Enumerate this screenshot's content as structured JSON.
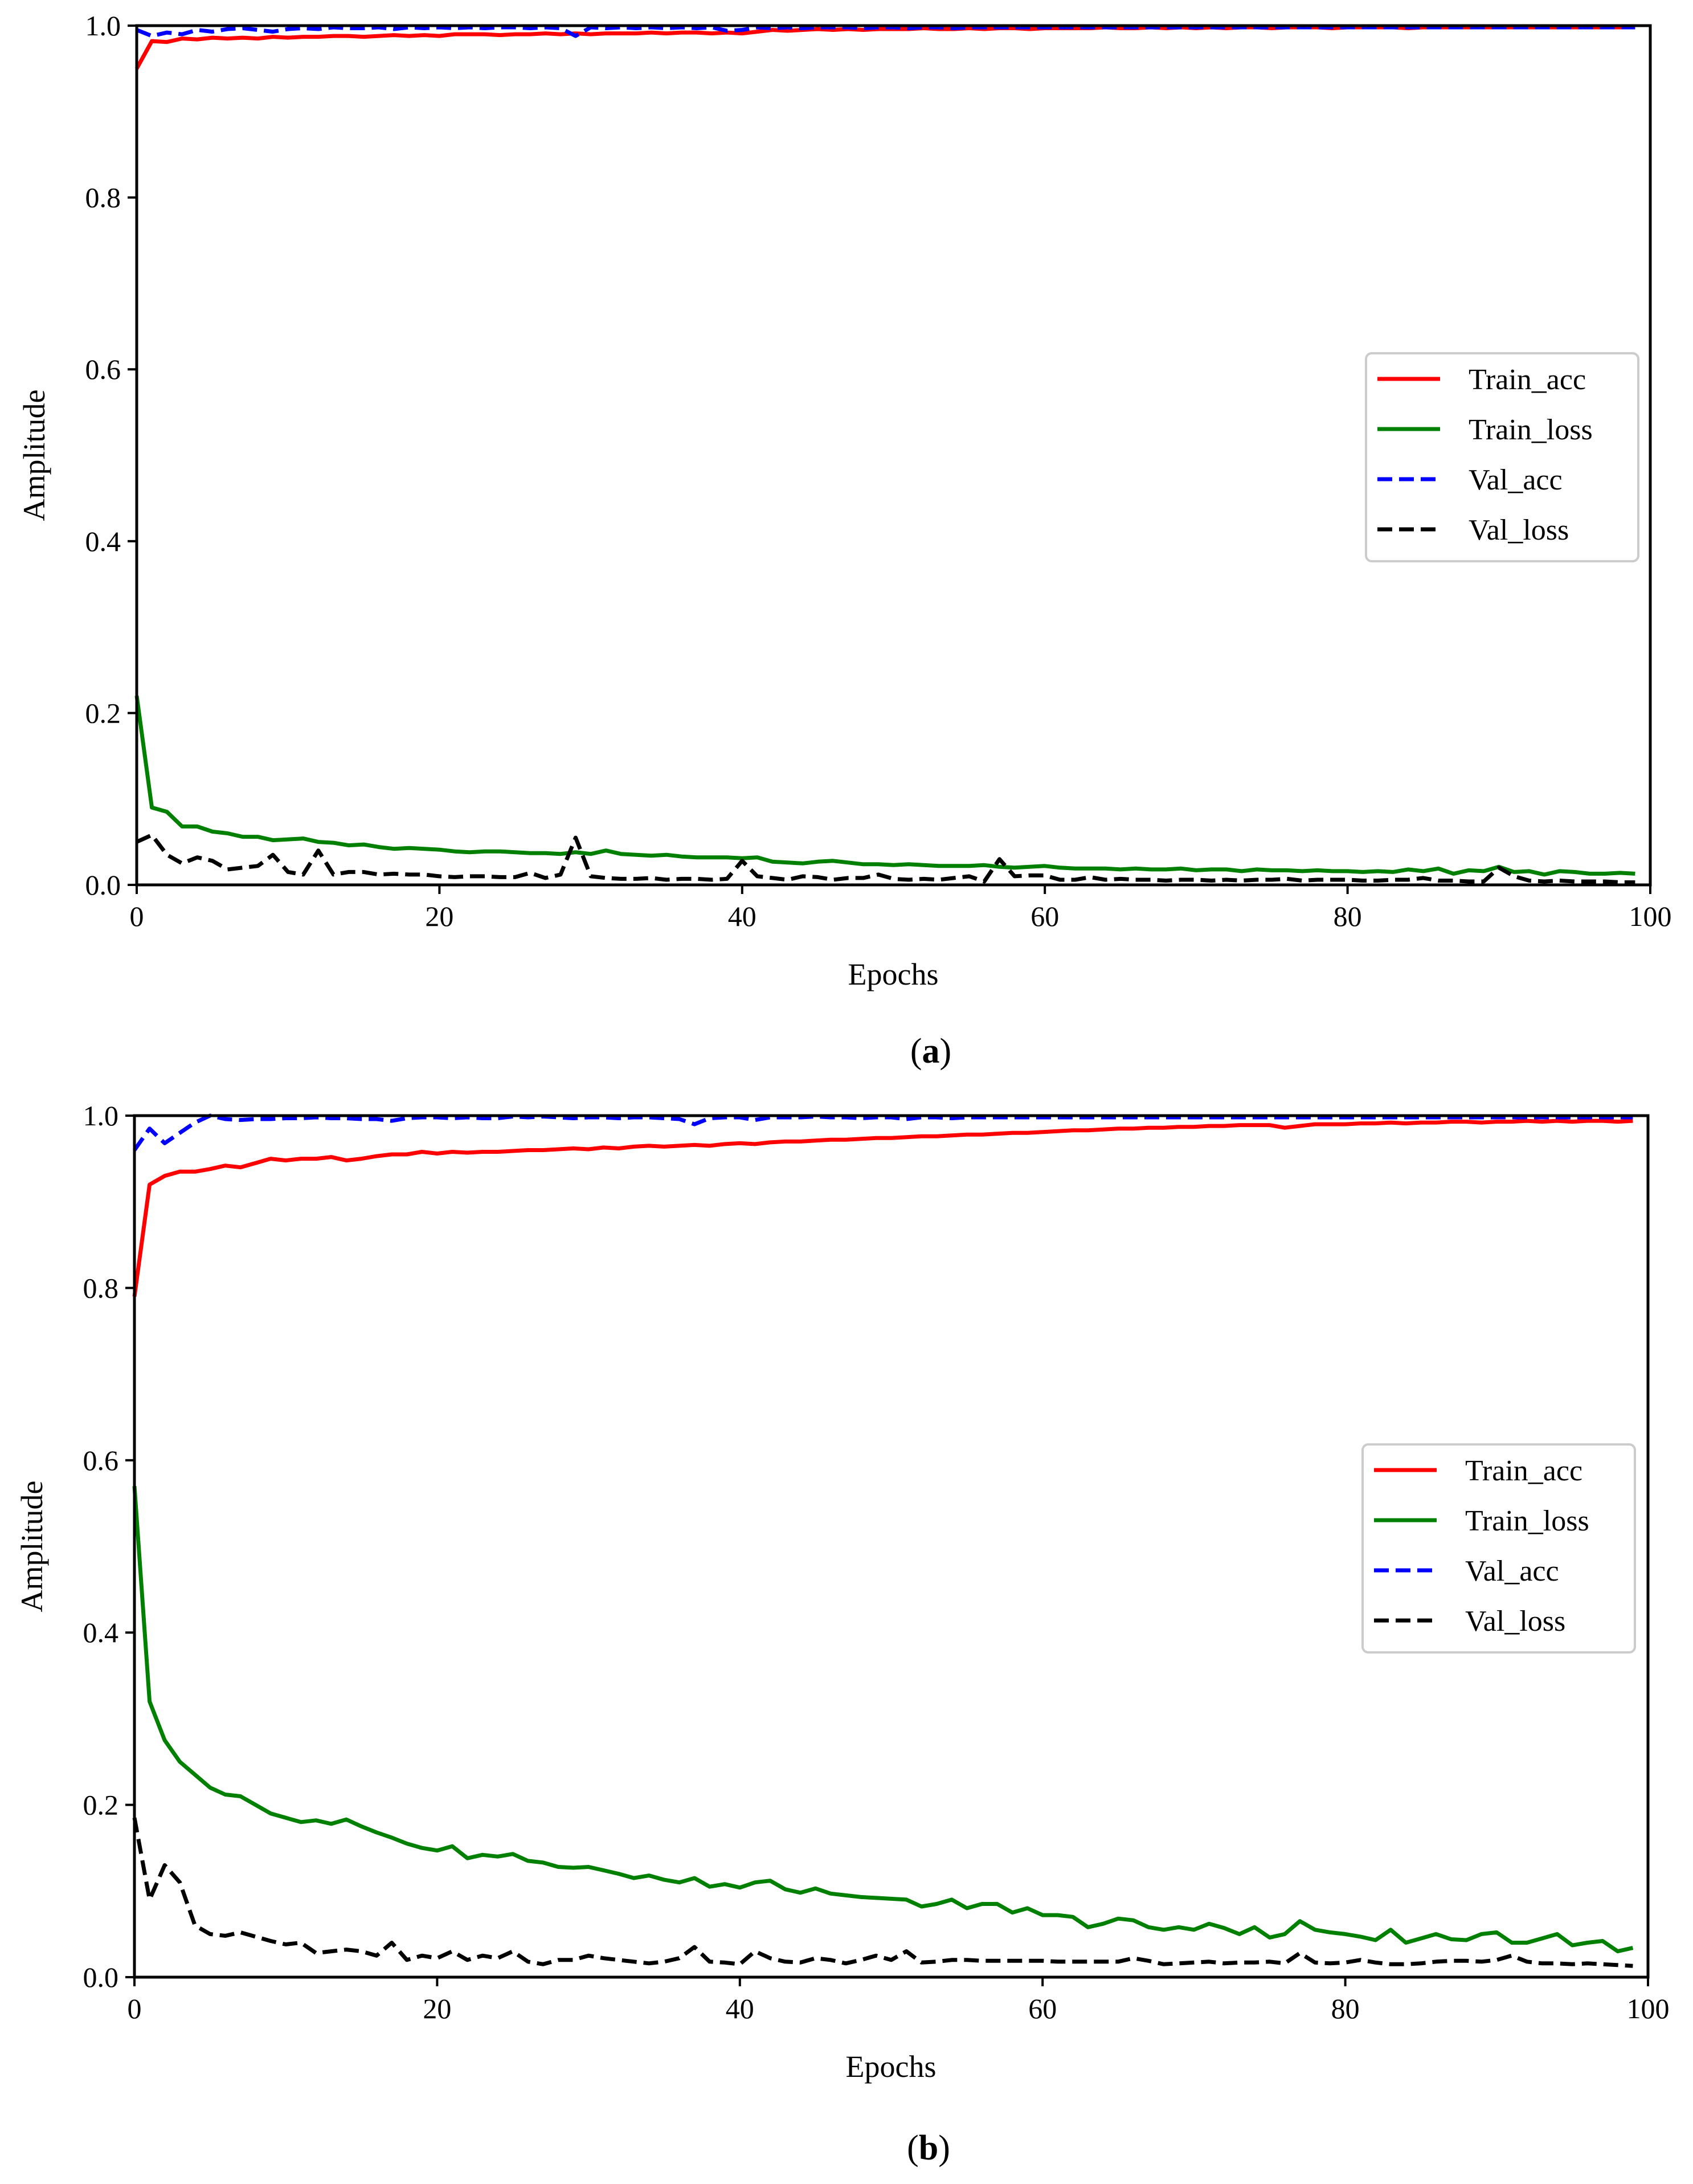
{
  "chart_data": [
    {
      "panel_label": "a",
      "type": "line",
      "title": "",
      "xlabel": "Epochs",
      "ylabel": "Amplitude",
      "xlim": [
        0,
        100
      ],
      "ylim": [
        0,
        1.0
      ],
      "xticks": [
        "0",
        "20",
        "40",
        "60",
        "80",
        "100"
      ],
      "yticks": [
        "0.0",
        "0.2",
        "0.4",
        "0.6",
        "0.8",
        "1.0"
      ],
      "grid": false,
      "legend_position": "center-right",
      "x": [
        0,
        1,
        2,
        3,
        4,
        5,
        6,
        7,
        8,
        9,
        10,
        11,
        12,
        13,
        14,
        15,
        16,
        17,
        18,
        19,
        20,
        21,
        22,
        23,
        24,
        25,
        26,
        27,
        28,
        29,
        30,
        31,
        32,
        33,
        34,
        35,
        36,
        37,
        38,
        39,
        40,
        41,
        42,
        43,
        44,
        45,
        46,
        47,
        48,
        49,
        50,
        51,
        52,
        53,
        54,
        55,
        56,
        57,
        58,
        59,
        60,
        61,
        62,
        63,
        64,
        65,
        66,
        67,
        68,
        69,
        70,
        71,
        72,
        73,
        74,
        75,
        76,
        77,
        78,
        79,
        80,
        81,
        82,
        83,
        84,
        85,
        86,
        87,
        88,
        89,
        90,
        91,
        92,
        93,
        94,
        95,
        96,
        97,
        98,
        99
      ],
      "series": [
        {
          "name": "Train_acc",
          "color": "#ff0000",
          "dash": "solid",
          "values": [
            0.95,
            0.982,
            0.981,
            0.985,
            0.984,
            0.986,
            0.985,
            0.986,
            0.985,
            0.987,
            0.986,
            0.987,
            0.987,
            0.988,
            0.988,
            0.987,
            0.988,
            0.989,
            0.988,
            0.989,
            0.988,
            0.99,
            0.99,
            0.99,
            0.989,
            0.99,
            0.99,
            0.991,
            0.99,
            0.991,
            0.99,
            0.991,
            0.991,
            0.991,
            0.992,
            0.991,
            0.992,
            0.992,
            0.991,
            0.992,
            0.991,
            0.993,
            0.995,
            0.994,
            0.995,
            0.996,
            0.995,
            0.996,
            0.995,
            0.996,
            0.996,
            0.996,
            0.997,
            0.996,
            0.996,
            0.997,
            0.996,
            0.997,
            0.997,
            0.996,
            0.997,
            0.997,
            0.997,
            0.997,
            0.998,
            0.997,
            0.997,
            0.998,
            0.997,
            0.998,
            0.997,
            0.998,
            0.997,
            0.998,
            0.998,
            0.997,
            0.998,
            0.998,
            0.998,
            0.997,
            0.998,
            0.998,
            0.998,
            0.998,
            0.997,
            0.998,
            0.998,
            0.998,
            0.998,
            0.998,
            0.998,
            0.998,
            0.998,
            0.998,
            0.998,
            0.998,
            0.998,
            0.998,
            0.998,
            0.998
          ]
        },
        {
          "name": "Train_loss",
          "color": "#008000",
          "dash": "solid",
          "values": [
            0.22,
            0.09,
            0.085,
            0.068,
            0.068,
            0.062,
            0.06,
            0.056,
            0.056,
            0.052,
            0.053,
            0.054,
            0.05,
            0.049,
            0.046,
            0.047,
            0.044,
            0.042,
            0.043,
            0.042,
            0.041,
            0.039,
            0.038,
            0.039,
            0.039,
            0.038,
            0.037,
            0.037,
            0.036,
            0.038,
            0.036,
            0.04,
            0.036,
            0.035,
            0.034,
            0.035,
            0.033,
            0.032,
            0.032,
            0.032,
            0.031,
            0.032,
            0.027,
            0.026,
            0.025,
            0.027,
            0.028,
            0.026,
            0.024,
            0.024,
            0.023,
            0.024,
            0.023,
            0.022,
            0.022,
            0.022,
            0.023,
            0.021,
            0.02,
            0.021,
            0.022,
            0.02,
            0.019,
            0.019,
            0.019,
            0.018,
            0.019,
            0.018,
            0.018,
            0.019,
            0.017,
            0.018,
            0.018,
            0.016,
            0.018,
            0.017,
            0.017,
            0.016,
            0.017,
            0.016,
            0.016,
            0.015,
            0.016,
            0.015,
            0.018,
            0.016,
            0.019,
            0.013,
            0.017,
            0.016,
            0.021,
            0.015,
            0.016,
            0.012,
            0.016,
            0.015,
            0.013,
            0.013,
            0.014,
            0.013
          ]
        },
        {
          "name": "Val_acc",
          "color": "#0000ff",
          "dash": "dashed",
          "values": [
            0.995,
            0.988,
            0.992,
            0.99,
            0.995,
            0.993,
            0.996,
            0.997,
            0.995,
            0.993,
            0.996,
            0.997,
            0.996,
            0.998,
            0.997,
            0.997,
            0.998,
            0.996,
            0.998,
            0.997,
            0.998,
            0.997,
            0.998,
            0.997,
            0.998,
            0.998,
            0.997,
            0.998,
            0.997,
            0.988,
            0.998,
            0.997,
            0.998,
            0.997,
            0.998,
            0.997,
            0.998,
            0.997,
            0.998,
            0.994,
            0.995,
            0.998,
            0.997,
            0.998,
            0.997,
            0.998,
            0.998,
            0.998,
            0.997,
            0.998,
            0.998,
            0.997,
            0.998,
            0.998,
            0.997,
            0.998,
            0.998,
            0.998,
            0.998,
            0.998,
            0.998,
            0.998,
            0.998,
            0.998,
            0.998,
            0.998,
            0.998,
            0.998,
            0.998,
            0.998,
            0.998,
            0.998,
            0.998,
            0.998,
            0.998,
            0.998,
            0.998,
            0.998,
            0.998,
            0.998,
            0.998,
            0.998,
            0.998,
            0.998,
            0.998,
            0.998,
            0.998,
            0.998,
            0.998,
            0.998,
            0.998,
            0.998,
            0.998,
            0.998,
            0.998,
            0.998,
            0.998,
            0.998,
            0.998,
            0.998
          ]
        },
        {
          "name": "Val_loss",
          "color": "#000000",
          "dash": "dashed",
          "values": [
            0.05,
            0.058,
            0.035,
            0.025,
            0.032,
            0.028,
            0.018,
            0.02,
            0.022,
            0.035,
            0.015,
            0.012,
            0.04,
            0.012,
            0.015,
            0.015,
            0.012,
            0.013,
            0.012,
            0.012,
            0.01,
            0.009,
            0.01,
            0.01,
            0.009,
            0.009,
            0.014,
            0.008,
            0.012,
            0.055,
            0.01,
            0.008,
            0.007,
            0.007,
            0.008,
            0.006,
            0.007,
            0.007,
            0.006,
            0.007,
            0.028,
            0.01,
            0.008,
            0.006,
            0.01,
            0.009,
            0.006,
            0.008,
            0.008,
            0.012,
            0.007,
            0.006,
            0.007,
            0.006,
            0.008,
            0.01,
            0.004,
            0.03,
            0.01,
            0.011,
            0.011,
            0.006,
            0.006,
            0.009,
            0.006,
            0.007,
            0.006,
            0.006,
            0.005,
            0.006,
            0.006,
            0.005,
            0.006,
            0.005,
            0.006,
            0.006,
            0.007,
            0.005,
            0.006,
            0.006,
            0.006,
            0.005,
            0.005,
            0.006,
            0.006,
            0.008,
            0.005,
            0.005,
            0.004,
            0.004,
            0.02,
            0.01,
            0.005,
            0.004,
            0.005,
            0.004,
            0.004,
            0.004,
            0.003,
            0.003
          ]
        }
      ]
    },
    {
      "panel_label": "b",
      "type": "line",
      "title": "",
      "xlabel": "Epochs",
      "ylabel": "Amplitude",
      "xlim": [
        0,
        100
      ],
      "ylim": [
        0,
        1.0
      ],
      "xticks": [
        "0",
        "20",
        "40",
        "60",
        "80",
        "100"
      ],
      "yticks": [
        "0.0",
        "0.2",
        "0.4",
        "0.6",
        "0.8",
        "1.0"
      ],
      "grid": false,
      "legend_position": "center-right",
      "x": [
        0,
        1,
        2,
        3,
        4,
        5,
        6,
        7,
        8,
        9,
        10,
        11,
        12,
        13,
        14,
        15,
        16,
        17,
        18,
        19,
        20,
        21,
        22,
        23,
        24,
        25,
        26,
        27,
        28,
        29,
        30,
        31,
        32,
        33,
        34,
        35,
        36,
        37,
        38,
        39,
        40,
        41,
        42,
        43,
        44,
        45,
        46,
        47,
        48,
        49,
        50,
        51,
        52,
        53,
        54,
        55,
        56,
        57,
        58,
        59,
        60,
        61,
        62,
        63,
        64,
        65,
        66,
        67,
        68,
        69,
        70,
        71,
        72,
        73,
        74,
        75,
        76,
        77,
        78,
        79,
        80,
        81,
        82,
        83,
        84,
        85,
        86,
        87,
        88,
        89,
        90,
        91,
        92,
        93,
        94,
        95,
        96,
        97,
        98,
        99
      ],
      "series": [
        {
          "name": "Train_acc",
          "color": "#ff0000",
          "dash": "solid",
          "values": [
            0.79,
            0.92,
            0.93,
            0.935,
            0.935,
            0.938,
            0.942,
            0.94,
            0.945,
            0.95,
            0.948,
            0.95,
            0.95,
            0.952,
            0.948,
            0.95,
            0.953,
            0.955,
            0.955,
            0.958,
            0.956,
            0.958,
            0.957,
            0.958,
            0.958,
            0.959,
            0.96,
            0.96,
            0.961,
            0.962,
            0.961,
            0.963,
            0.962,
            0.964,
            0.965,
            0.964,
            0.965,
            0.966,
            0.965,
            0.967,
            0.968,
            0.967,
            0.969,
            0.97,
            0.97,
            0.971,
            0.972,
            0.972,
            0.973,
            0.974,
            0.974,
            0.975,
            0.976,
            0.976,
            0.977,
            0.978,
            0.978,
            0.979,
            0.98,
            0.98,
            0.981,
            0.982,
            0.983,
            0.983,
            0.984,
            0.985,
            0.985,
            0.986,
            0.986,
            0.987,
            0.987,
            0.988,
            0.988,
            0.989,
            0.989,
            0.989,
            0.986,
            0.988,
            0.99,
            0.99,
            0.99,
            0.991,
            0.991,
            0.992,
            0.991,
            0.992,
            0.992,
            0.993,
            0.993,
            0.992,
            0.993,
            0.993,
            0.994,
            0.993,
            0.994,
            0.993,
            0.994,
            0.994,
            0.993,
            0.994
          ]
        },
        {
          "name": "Train_loss",
          "color": "#008000",
          "dash": "solid",
          "values": [
            0.57,
            0.32,
            0.275,
            0.25,
            0.235,
            0.22,
            0.212,
            0.21,
            0.2,
            0.19,
            0.185,
            0.18,
            0.182,
            0.178,
            0.183,
            0.175,
            0.168,
            0.162,
            0.155,
            0.15,
            0.147,
            0.152,
            0.138,
            0.142,
            0.14,
            0.143,
            0.135,
            0.133,
            0.128,
            0.127,
            0.128,
            0.124,
            0.12,
            0.115,
            0.118,
            0.113,
            0.11,
            0.115,
            0.105,
            0.108,
            0.104,
            0.11,
            0.112,
            0.102,
            0.098,
            0.103,
            0.097,
            0.095,
            0.093,
            0.092,
            0.091,
            0.09,
            0.082,
            0.085,
            0.09,
            0.08,
            0.085,
            0.085,
            0.075,
            0.08,
            0.072,
            0.072,
            0.07,
            0.058,
            0.062,
            0.068,
            0.066,
            0.058,
            0.055,
            0.058,
            0.055,
            0.062,
            0.057,
            0.05,
            0.058,
            0.046,
            0.05,
            0.065,
            0.055,
            0.052,
            0.05,
            0.047,
            0.043,
            0.055,
            0.04,
            0.045,
            0.05,
            0.044,
            0.043,
            0.05,
            0.052,
            0.04,
            0.04,
            0.045,
            0.05,
            0.037,
            0.04,
            0.042,
            0.03,
            0.034
          ]
        },
        {
          "name": "Val_acc",
          "color": "#0000ff",
          "dash": "dashed",
          "values": [
            0.96,
            0.985,
            0.968,
            0.98,
            0.992,
            1.0,
            0.996,
            0.995,
            0.996,
            0.996,
            0.997,
            0.997,
            0.998,
            0.997,
            0.997,
            0.996,
            0.996,
            0.994,
            0.997,
            0.998,
            0.998,
            0.997,
            0.998,
            0.997,
            0.997,
            0.999,
            0.998,
            0.999,
            0.998,
            0.997,
            0.998,
            0.998,
            0.997,
            0.998,
            0.998,
            0.997,
            0.996,
            0.99,
            0.997,
            0.998,
            0.998,
            0.995,
            0.998,
            0.998,
            0.998,
            0.999,
            0.998,
            0.998,
            0.997,
            0.998,
            0.998,
            0.996,
            0.998,
            0.998,
            0.997,
            0.998,
            0.998,
            0.998,
            0.998,
            0.998,
            0.998,
            0.998,
            0.998,
            0.998,
            0.998,
            0.998,
            0.998,
            0.998,
            0.998,
            0.998,
            0.998,
            0.998,
            0.998,
            0.998,
            0.998,
            0.998,
            0.998,
            0.998,
            0.998,
            0.998,
            0.998,
            0.998,
            0.998,
            0.998,
            0.998,
            0.998,
            0.998,
            0.998,
            0.998,
            0.998,
            0.998,
            0.998,
            0.998,
            0.998,
            0.998,
            0.998,
            0.998,
            0.998,
            0.998,
            0.998
          ]
        },
        {
          "name": "Val_loss",
          "color": "#000000",
          "dash": "dashed",
          "values": [
            0.185,
            0.09,
            0.13,
            0.11,
            0.06,
            0.05,
            0.048,
            0.052,
            0.047,
            0.042,
            0.038,
            0.04,
            0.028,
            0.03,
            0.032,
            0.03,
            0.025,
            0.04,
            0.02,
            0.025,
            0.022,
            0.03,
            0.02,
            0.025,
            0.022,
            0.03,
            0.018,
            0.015,
            0.02,
            0.02,
            0.025,
            0.022,
            0.02,
            0.018,
            0.016,
            0.018,
            0.022,
            0.035,
            0.018,
            0.017,
            0.015,
            0.03,
            0.022,
            0.018,
            0.017,
            0.022,
            0.02,
            0.016,
            0.02,
            0.025,
            0.02,
            0.03,
            0.017,
            0.018,
            0.02,
            0.02,
            0.019,
            0.019,
            0.019,
            0.019,
            0.019,
            0.018,
            0.018,
            0.018,
            0.018,
            0.018,
            0.022,
            0.019,
            0.015,
            0.016,
            0.017,
            0.018,
            0.016,
            0.017,
            0.017,
            0.018,
            0.016,
            0.028,
            0.017,
            0.016,
            0.017,
            0.02,
            0.017,
            0.015,
            0.015,
            0.016,
            0.018,
            0.019,
            0.019,
            0.018,
            0.02,
            0.025,
            0.018,
            0.016,
            0.016,
            0.015,
            0.016,
            0.015,
            0.014,
            0.013
          ]
        }
      ]
    }
  ]
}
